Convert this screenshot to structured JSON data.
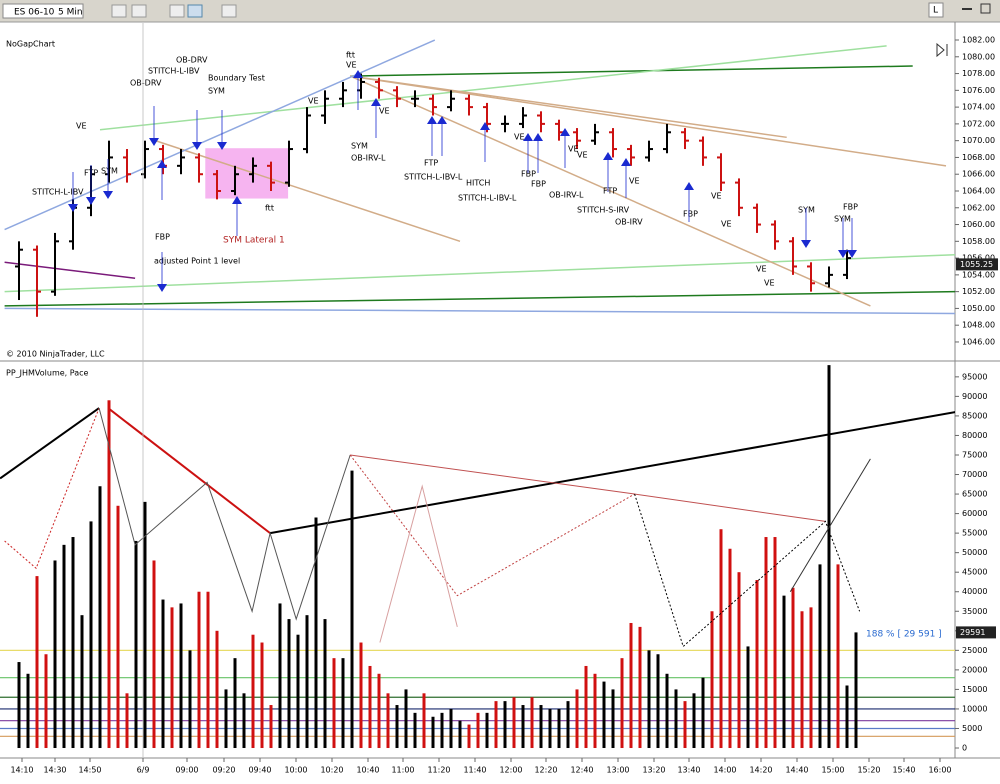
{
  "toolbar": {
    "instrument": "ES 06-10",
    "interval": "5 Min",
    "button": "L"
  },
  "chart_data": [
    {
      "type": "ohlc",
      "title": "NoGapChart",
      "copyright": "© 2010 NinjaTrader, LLC",
      "ylim": [
        1043.85,
        1082.24
      ],
      "yticks": [
        {
          "value": 1046,
          "label": "1046.00"
        },
        {
          "value": 1048,
          "label": "1048.00"
        },
        {
          "value": 1050,
          "label": "1050.00"
        },
        {
          "value": 1052,
          "label": "1052.00"
        },
        {
          "value": 1054,
          "label": "1054.00"
        },
        {
          "value": 1056,
          "label": "1056.00"
        },
        {
          "value": 1058,
          "label": "1058.00"
        },
        {
          "value": 1060,
          "label": "1060.00"
        },
        {
          "value": 1062,
          "label": "1062.00"
        },
        {
          "value": 1064,
          "label": "1064.00"
        },
        {
          "value": 1066,
          "label": "1066.00"
        },
        {
          "value": 1068,
          "label": "1068.00"
        },
        {
          "value": 1070,
          "label": "1070.00"
        },
        {
          "value": 1072,
          "label": "1072.00"
        },
        {
          "value": 1074,
          "label": "1074.00"
        },
        {
          "value": 1076,
          "label": "1076.00"
        },
        {
          "value": 1078,
          "label": "1078.00"
        },
        {
          "value": 1080,
          "label": "1080.00"
        },
        {
          "value": 1082,
          "label": "1082.00"
        }
      ],
      "up_color": "#000000",
      "down_color": "#cc1111",
      "bars": [
        [
          1055,
          1058,
          1051,
          1057
        ],
        [
          1057,
          1057.5,
          1049,
          1052
        ],
        [
          1052,
          1059,
          1051.5,
          1058
        ],
        [
          1058,
          1063,
          1057,
          1062
        ],
        [
          1062,
          1067,
          1061,
          1066
        ],
        [
          1066,
          1070,
          1065,
          1068
        ],
        [
          1068,
          1069,
          1065,
          1066
        ],
        [
          1066,
          1070,
          1065.5,
          1069
        ],
        [
          1069,
          1069.5,
          1066,
          1067
        ],
        [
          1067,
          1069,
          1066,
          1068
        ],
        [
          1068,
          1068.5,
          1065,
          1066
        ],
        [
          1066,
          1066.5,
          1063,
          1064
        ],
        [
          1064,
          1067,
          1063.5,
          1066
        ],
        [
          1066,
          1068,
          1065,
          1067
        ],
        [
          1067,
          1067.5,
          1064,
          1065
        ],
        [
          1065,
          1070,
          1064.5,
          1069
        ],
        [
          1069,
          1074,
          1068.5,
          1073
        ],
        [
          1073,
          1076,
          1072,
          1075
        ],
        [
          1075,
          1077,
          1074,
          1076
        ],
        [
          1076,
          1078,
          1075,
          1077
        ],
        [
          1077,
          1077.5,
          1075,
          1076
        ],
        [
          1076,
          1076.5,
          1074,
          1075
        ],
        [
          1075,
          1076,
          1074,
          1075
        ],
        [
          1075,
          1075.5,
          1073,
          1074
        ],
        [
          1074,
          1076,
          1073.5,
          1075
        ],
        [
          1075,
          1075.5,
          1073,
          1074
        ],
        [
          1074,
          1074.5,
          1071,
          1072
        ],
        [
          1072,
          1073,
          1071,
          1072
        ],
        [
          1072,
          1074,
          1071.5,
          1073
        ],
        [
          1073,
          1073.5,
          1071,
          1072
        ],
        [
          1072,
          1072.5,
          1070,
          1071
        ],
        [
          1071,
          1071.5,
          1069,
          1070
        ],
        [
          1070,
          1072,
          1069.5,
          1071
        ],
        [
          1071,
          1071.5,
          1068,
          1069
        ],
        [
          1069,
          1069.5,
          1067,
          1068
        ],
        [
          1068,
          1070,
          1067.5,
          1069
        ],
        [
          1069,
          1072,
          1068.5,
          1071
        ],
        [
          1071,
          1071.5,
          1069,
          1070
        ],
        [
          1070,
          1070.5,
          1067,
          1068
        ],
        [
          1068,
          1068.5,
          1064,
          1065
        ],
        [
          1065,
          1065.5,
          1061,
          1062
        ],
        [
          1062,
          1062.5,
          1059,
          1060
        ],
        [
          1060,
          1060.5,
          1057,
          1058
        ],
        [
          1058,
          1058.5,
          1054,
          1055
        ],
        [
          1055,
          1055.5,
          1052,
          1053
        ],
        [
          1053,
          1055,
          1052.5,
          1054
        ],
        [
          1054,
          1057,
          1053.5,
          1056
        ]
      ],
      "last_price": 1055.25,
      "lines": [
        {
          "color": "#1e7a1e",
          "points": [
            [
              -1.6,
              1050.3
            ],
            [
              104,
              1052.0
            ]
          ]
        },
        {
          "color": "#1e7a1e",
          "points": [
            [
              36.8,
              1077.7
            ],
            [
              99.3,
              1078.9
            ]
          ]
        },
        {
          "color": "#9fe09f",
          "points": [
            [
              9,
              1071.3
            ],
            [
              96.4,
              1081.3
            ]
          ]
        },
        {
          "color": "#9fe09f",
          "points": [
            [
              -1.6,
              1052
            ],
            [
              104,
              1056.4
            ]
          ]
        },
        {
          "color": "#d2ac88",
          "points": [
            [
              36.8,
              1077.7
            ],
            [
              94.6,
              1050.3
            ]
          ]
        },
        {
          "color": "#d2ac88",
          "points": [
            [
              36.8,
              1077.7
            ],
            [
              85.3,
              1070.4
            ]
          ]
        },
        {
          "color": "#d2ac88",
          "points": [
            [
              36.8,
              1077.7
            ],
            [
              103,
              1067
            ]
          ]
        },
        {
          "color": "#d2ac88",
          "points": [
            [
              14.6,
              1070.2
            ],
            [
              49,
              1058
            ]
          ]
        },
        {
          "color": "#8fa8e0",
          "points": [
            [
              -1.6,
              1059.4
            ],
            [
              46.2,
              1082
            ]
          ]
        },
        {
          "color": "#8fa8e0",
          "points": [
            [
              -1.6,
              1050
            ],
            [
              104,
              1049.4
            ]
          ]
        },
        {
          "color": "#7a1a7a",
          "points": [
            [
              -1.6,
              1055.5
            ],
            [
              12.9,
              1053.6
            ]
          ]
        }
      ],
      "highlight": {
        "color": "#f6b4f0",
        "x": [
          20.7,
          29.9
        ],
        "y": [
          1063.1,
          1069.1
        ]
      },
      "annotations": [
        "ftt",
        "VE",
        "OB-DRV",
        "STITCH-L-IBV",
        "OB-DRV",
        "Boundary Test",
        "SYM",
        "VE",
        "STITCH-L-IBV",
        "FTP",
        "SYM",
        "FBP",
        "SYM Lateral 1",
        "ftt",
        "adjusted Point 1 level",
        "VE",
        "SYM",
        "OB-IRV-L",
        "VE",
        "FTP",
        "STITCH-L-IBV-L",
        "HITCH",
        "STITCH-L-IBV-L",
        "VE",
        "FBP",
        "FBP",
        "OB-IRV-L",
        "VE",
        "VE",
        "FTP",
        "STITCH-S-IRV",
        "OB-IRV",
        "VE",
        "FBP",
        "VE",
        "VE",
        "VE",
        "VE",
        "SYM",
        "SYM",
        "FBP"
      ]
    },
    {
      "type": "bar",
      "title": "PP_JHMVolume, Pace",
      "ylim": [
        -2300,
        98800
      ],
      "yticks": [
        0,
        5000,
        10000,
        15000,
        20000,
        25000,
        30000,
        35000,
        40000,
        45000,
        50000,
        55000,
        60000,
        65000,
        70000,
        75000,
        80000,
        85000,
        90000,
        95000
      ],
      "x_labels": [
        "14:10",
        "14:30",
        "14:50",
        "6/9",
        "09:00",
        "09:20",
        "09:40",
        "10:00",
        "10:20",
        "10:40",
        "11:00",
        "11:20",
        "11:40",
        "12:00",
        "12:20",
        "12:40",
        "13:00",
        "13:20",
        "13:40",
        "14:00",
        "14:20",
        "14:40",
        "15:00",
        "15:20",
        "15:40",
        "16:00"
      ],
      "values": [
        22000,
        19000,
        44000,
        24000,
        48000,
        52000,
        54000,
        34000,
        58000,
        67000,
        89000,
        62000,
        14000,
        53000,
        63000,
        48000,
        38000,
        36000,
        37000,
        25000,
        40000,
        40000,
        30000,
        15000,
        23000,
        14000,
        29000,
        27000,
        11000,
        37000,
        33000,
        29000,
        34000,
        59000,
        33000,
        23000,
        23000,
        71000,
        27000,
        21000,
        19000,
        14000,
        11000,
        15000,
        9000,
        14000,
        8000,
        9000,
        10000,
        7000,
        6000,
        9000,
        9000,
        12000,
        12000,
        13000,
        11000,
        13000,
        11000,
        10000,
        10000,
        12000,
        15000,
        21000,
        19000,
        17000,
        15000,
        23000,
        32000,
        31000,
        25000,
        24000,
        19000,
        15000,
        12000,
        14000,
        18000,
        35000,
        56000,
        51000,
        45000,
        26000,
        43000,
        54000,
        54000,
        39000,
        41000,
        35000,
        36000,
        47000,
        98000,
        47000,
        16000,
        29591
      ],
      "colors": [
        "#000",
        "#000",
        "#d01010",
        "#d01010",
        "#000",
        "#000",
        "#000",
        "#000",
        "#000",
        "#000",
        "#d01010",
        "#d01010",
        "#d01010",
        "#000",
        "#000",
        "#d01010",
        "#000",
        "#d01010",
        "#000",
        "#000",
        "#d01010",
        "#d01010",
        "#d01010",
        "#000",
        "#000",
        "#000",
        "#d01010",
        "#d01010",
        "#d01010",
        "#000",
        "#000",
        "#000",
        "#000",
        "#000",
        "#000",
        "#d01010",
        "#000",
        "#000",
        "#d01010",
        "#d01010",
        "#d01010",
        "#d01010",
        "#000",
        "#000",
        "#000",
        "#d01010",
        "#000",
        "#000",
        "#000",
        "#000",
        "#d01010",
        "#d01010",
        "#000",
        "#d01010",
        "#000",
        "#d01010",
        "#000",
        "#d01010",
        "#000",
        "#000",
        "#000",
        "#000",
        "#d01010",
        "#d01010",
        "#d01010",
        "#000",
        "#000",
        "#d01010",
        "#d01010",
        "#d01010",
        "#000",
        "#000",
        "#000",
        "#000",
        "#d01010",
        "#000",
        "#000",
        "#d01010",
        "#d01010",
        "#d01010",
        "#d01010",
        "#000",
        "#d01010",
        "#d01010",
        "#d01010",
        "#000",
        "#d01010",
        "#d01010",
        "#d01010",
        "#000",
        "#000",
        "#d01010",
        "#000",
        "#000"
      ],
      "current": 29591,
      "pace_label": "188 % [ 29 591 ]",
      "levels": [
        {
          "value": 25000,
          "color": "#e8dc6a"
        },
        {
          "value": 18000,
          "color": "#66c266"
        },
        {
          "value": 13000,
          "color": "#2e6e2e"
        },
        {
          "value": 10000,
          "color": "#1a2a6e"
        },
        {
          "value": 7000,
          "color": "#7b3a9e"
        },
        {
          "value": 5000,
          "color": "#5a7ac8"
        },
        {
          "value": 3000,
          "color": "#d49a5a"
        }
      ],
      "lines": [
        {
          "color": "#000000",
          "width": 2,
          "dash": false,
          "points": [
            [
              -2.1,
              69000
            ],
            [
              8.9,
              87000
            ]
          ]
        },
        {
          "color": "#cc1111",
          "width": 2,
          "dash": false,
          "points": [
            [
              9.9,
              87000
            ],
            [
              27.9,
              55000
            ]
          ]
        },
        {
          "color": "#000000",
          "width": 2,
          "dash": false,
          "points": [
            [
              27.9,
              55000
            ],
            [
              109,
              88000
            ]
          ]
        },
        {
          "color": "#cc2222",
          "width": 1,
          "dash": true,
          "points": [
            [
              -1.6,
              53000
            ],
            [
              1.9,
              46000
            ],
            [
              8.9,
              87000
            ]
          ]
        },
        {
          "color": "#555555",
          "width": 1,
          "dash": false,
          "points": [
            [
              8.9,
              87000
            ],
            [
              12.9,
              52000
            ],
            [
              20.9,
              68000
            ],
            [
              25.9,
              35000
            ],
            [
              27.9,
              55000
            ],
            [
              30.8,
              33000
            ],
            [
              36.8,
              75000
            ]
          ]
        },
        {
          "color": "#c05050",
          "width": 1,
          "dash": false,
          "points": [
            [
              36.8,
              75000
            ],
            [
              68.4,
              65000
            ],
            [
              89.6,
              58000
            ]
          ]
        },
        {
          "color": "#c04040",
          "width": 1,
          "dash": true,
          "points": [
            [
              36.8,
              75000
            ],
            [
              48.7,
              39000
            ],
            [
              68.4,
              65000
            ]
          ]
        },
        {
          "color": "#d8a0a0",
          "width": 1,
          "dash": false,
          "points": [
            [
              40.1,
              27000
            ],
            [
              44.8,
              67000
            ],
            [
              48.7,
              31000
            ]
          ]
        },
        {
          "color": "#000000",
          "width": 1,
          "dash": true,
          "points": [
            [
              68.4,
              65000
            ],
            [
              73.8,
              26000
            ],
            [
              89.6,
              58000
            ],
            [
              93.4,
              35000
            ]
          ]
        },
        {
          "color": "#333333",
          "width": 1,
          "dash": false,
          "points": [
            [
              85.7,
              40000
            ],
            [
              94.6,
              74000
            ]
          ]
        }
      ]
    }
  ]
}
